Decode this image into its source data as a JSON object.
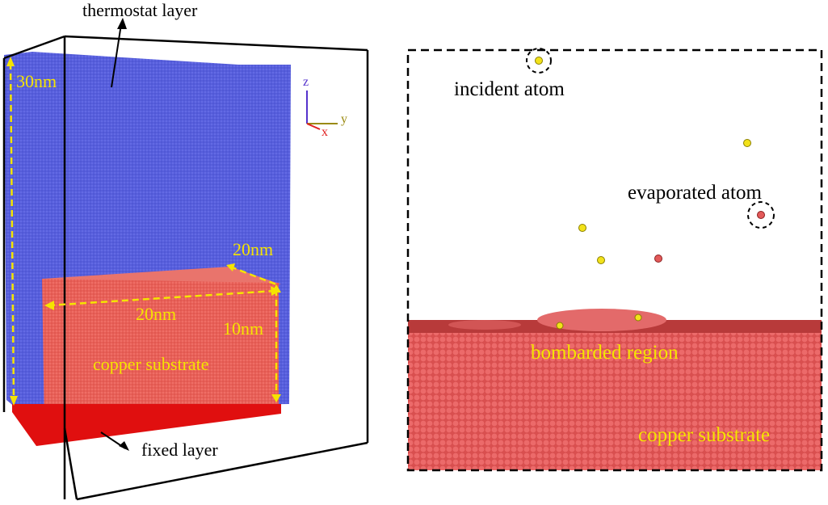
{
  "left_panel": {
    "thermostat_label": "thermostat layer",
    "height_label": "30nm",
    "depth_label": "20nm",
    "width_label": "20nm",
    "substrate_height_label": "10nm",
    "substrate_label": "copper substrate",
    "fixed_label": "fixed layer",
    "axes": {
      "z": "z",
      "y": "y",
      "x": "x"
    }
  },
  "right_panel": {
    "incident_label": "incident atom",
    "evaporated_label": "evaporated atom",
    "bombarded_label": "bombarded region",
    "substrate_label": "copper substrate"
  }
}
